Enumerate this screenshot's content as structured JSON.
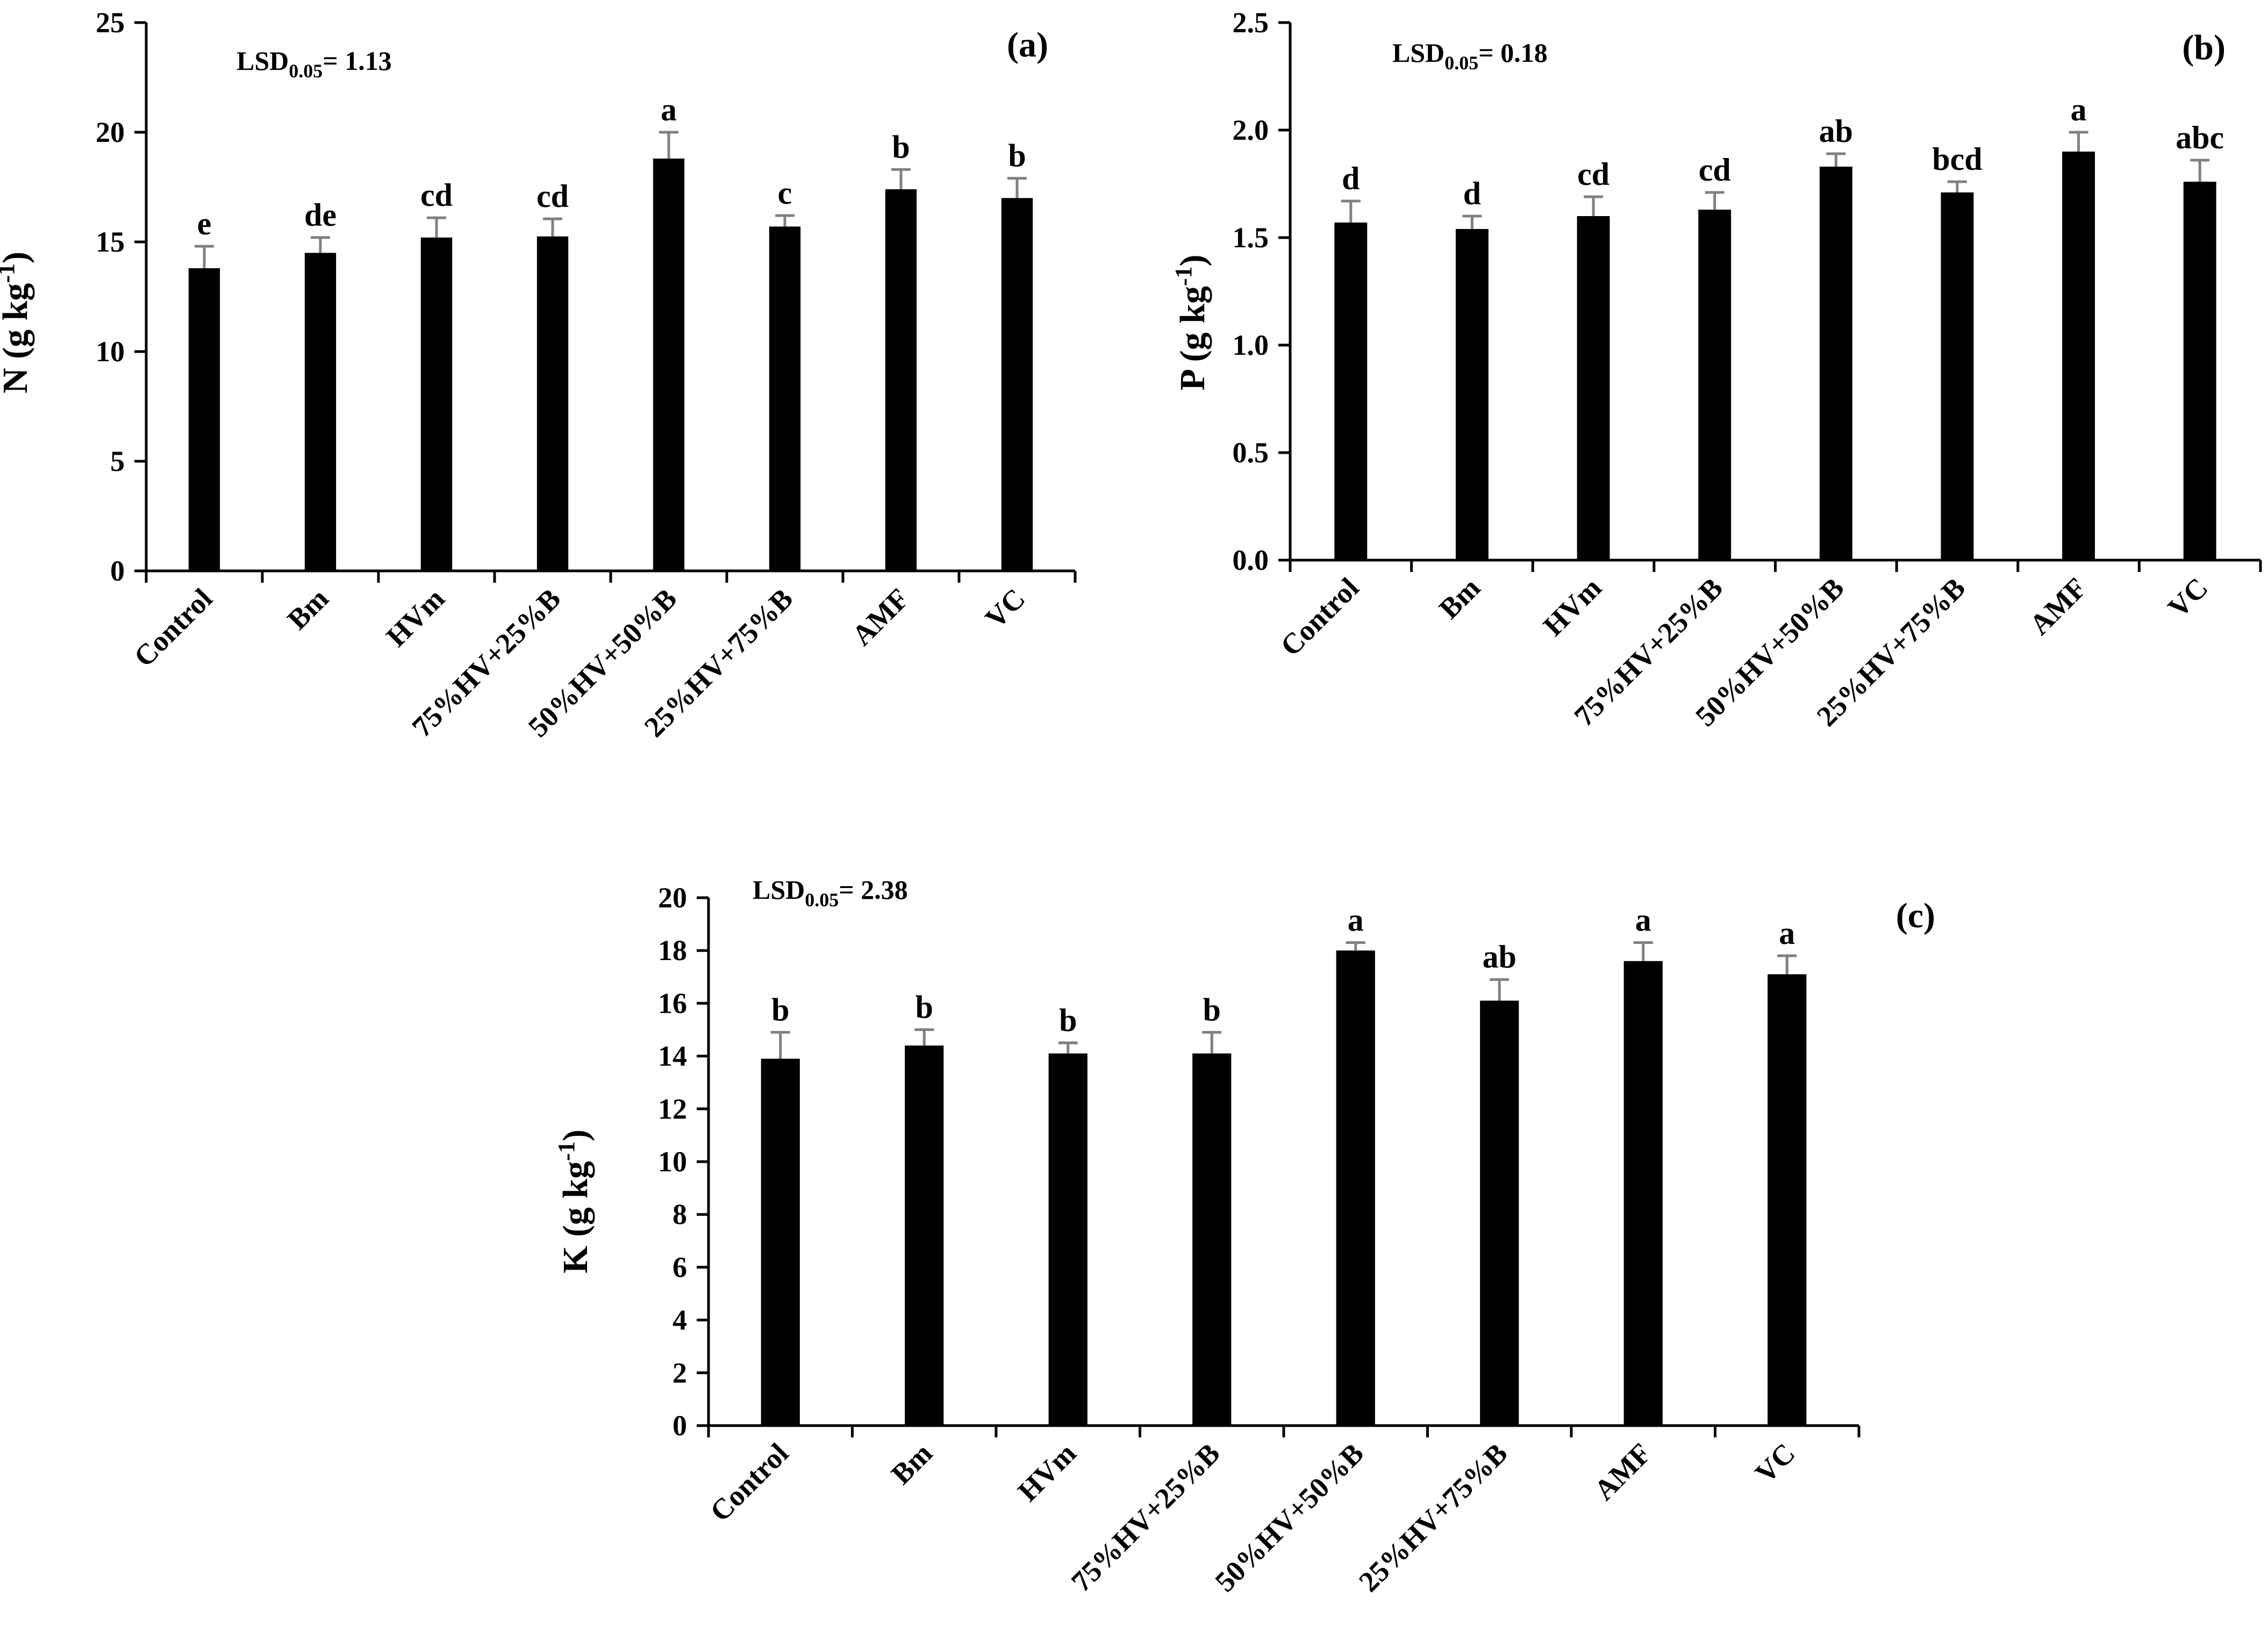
{
  "figure": {
    "colors": {
      "bar": "#000000",
      "error_bar": "#808080",
      "axis": "#000000",
      "background": "#ffffff"
    }
  },
  "chart_data": [
    {
      "type": "bar",
      "panel_label": "(a)",
      "lsd": {
        "prefix": "LSD",
        "subscript": "0.05",
        "value": "= 1.13"
      },
      "ylabel": {
        "main": "N (g kg",
        "sup": "-1",
        "end": ")"
      },
      "categories": [
        "Control",
        "Bm",
        "HVm",
        "75%HV+25%B",
        "50%HV+50%B",
        "25%HV+75%B",
        "AMF",
        "VC"
      ],
      "values": [
        13.8,
        14.5,
        15.2,
        15.25,
        18.8,
        15.7,
        17.4,
        17.0
      ],
      "errors": [
        1.0,
        0.7,
        0.9,
        0.8,
        1.2,
        0.5,
        0.9,
        0.9
      ],
      "letters": [
        "e",
        "de",
        "cd",
        "cd",
        "a",
        "c",
        "b",
        "b"
      ],
      "ylim": [
        0,
        25
      ],
      "yticks": [
        0,
        5,
        10,
        15,
        20,
        25
      ],
      "ytick_labels": [
        "0",
        "5",
        "10",
        "15",
        "20",
        "25"
      ]
    },
    {
      "type": "bar",
      "panel_label": "(b)",
      "lsd": {
        "prefix": "LSD",
        "subscript": "0.05",
        "value": "= 0.18"
      },
      "ylabel": {
        "main": "P (g kg",
        "sup": "-1",
        "end": ")"
      },
      "categories": [
        "Control",
        "Bm",
        "HVm",
        "75%HV+25%B",
        "50%HV+50%B",
        "25%HV+75%B",
        "AMF",
        "VC"
      ],
      "values": [
        1.57,
        1.54,
        1.6,
        1.63,
        1.83,
        1.71,
        1.9,
        1.76
      ],
      "errors": [
        0.1,
        0.06,
        0.09,
        0.08,
        0.06,
        0.05,
        0.09,
        0.1
      ],
      "letters": [
        "d",
        "d",
        "cd",
        "cd",
        "ab",
        "bcd",
        "a",
        "abc"
      ],
      "ylim": [
        0,
        2.5
      ],
      "yticks": [
        0,
        0.5,
        1.0,
        1.5,
        2.0,
        2.5
      ],
      "ytick_labels": [
        "0.0",
        "0.5",
        "1.0",
        "1.5",
        "2.0",
        "2.5"
      ]
    },
    {
      "type": "bar",
      "panel_label": "(c)",
      "lsd": {
        "prefix": "LSD",
        "subscript": "0.05",
        "value": "= 2.38"
      },
      "ylabel": {
        "main": "K (g kg",
        "sup": "-1",
        "end": ")"
      },
      "categories": [
        "Control",
        "Bm",
        "HVm",
        "75%HV+25%B",
        "50%HV+50%B",
        "25%HV+75%B",
        "AMF",
        "VC"
      ],
      "values": [
        13.9,
        14.4,
        14.1,
        14.1,
        18.0,
        16.1,
        17.6,
        17.1
      ],
      "errors": [
        1.0,
        0.6,
        0.4,
        0.8,
        0.3,
        0.8,
        0.7,
        0.7
      ],
      "letters": [
        "b",
        "b",
        "b",
        "b",
        "a",
        "ab",
        "a",
        "a"
      ],
      "ylim": [
        0,
        20
      ],
      "yticks": [
        0,
        2,
        4,
        6,
        8,
        10,
        12,
        14,
        16,
        18,
        20
      ],
      "ytick_labels": [
        "0",
        "2",
        "4",
        "6",
        "8",
        "10",
        "12",
        "14",
        "16",
        "18",
        "20"
      ]
    }
  ]
}
